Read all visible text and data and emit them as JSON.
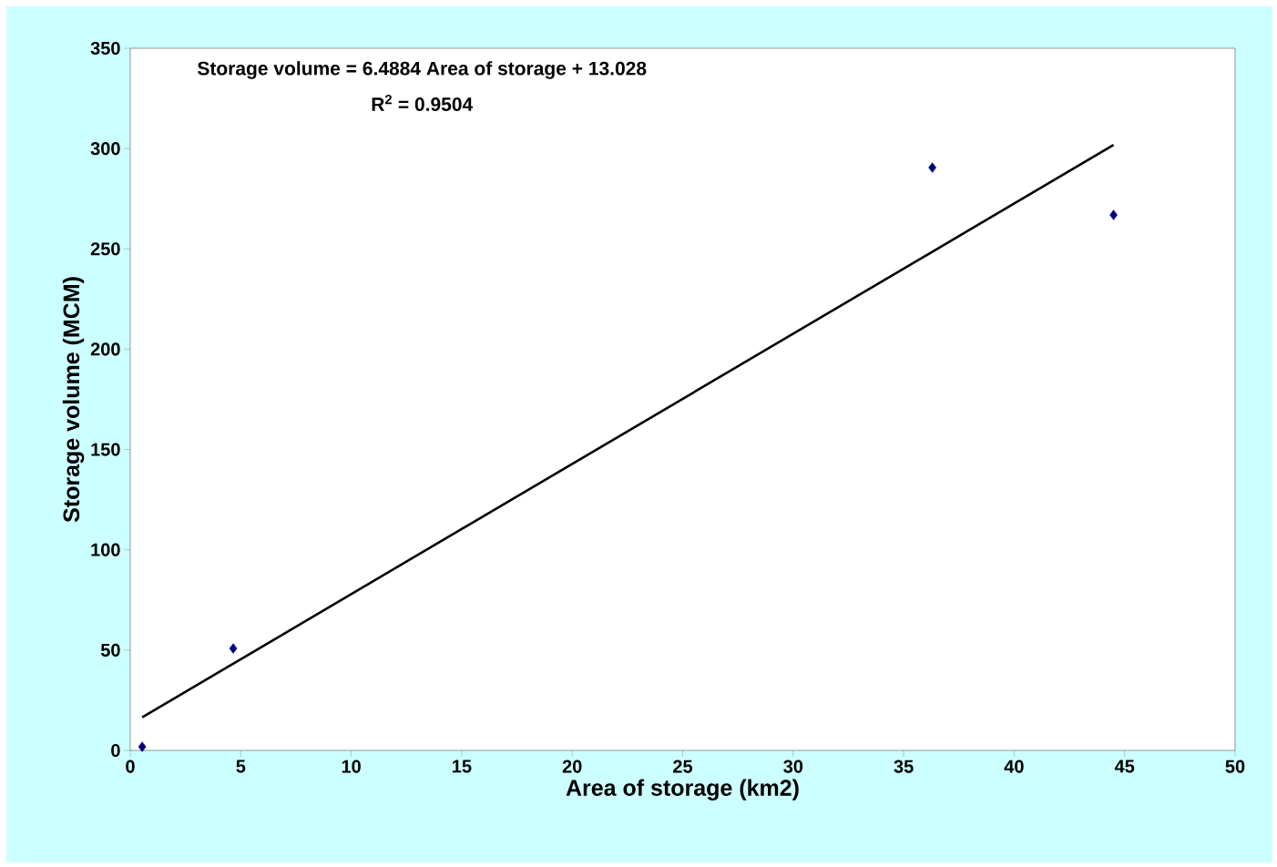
{
  "chart_data": {
    "type": "scatter",
    "xlabel": "Area of storage (km2)",
    "ylabel": "Storage volume (MCM)",
    "annotations": [
      "Storage volume = 6.4884 Area of storage + 13.028",
      "R$^{2}$ = 0.9504"
    ],
    "series": [
      {
        "color": "#000080",
        "marker": "diamond",
        "x": [
          0.54,
          4.66,
          36.3,
          44.5
        ],
        "values": [
          1.8,
          50.8,
          290.5,
          266.9
        ]
      },
      {
        "type": "line",
        "color": "#000000",
        "marker": "none",
        "x": [
          0.54,
          44.5
        ],
        "values": [
          16.5,
          301.8
        ]
      }
    ],
    "xlim": [
      0,
      50
    ],
    "ylim": [
      0,
      350
    ],
    "xticks": [
      0,
      5,
      10,
      15,
      20,
      25,
      30,
      35,
      40,
      45,
      50
    ],
    "yticks": [
      0,
      50,
      100,
      150,
      200,
      250,
      300,
      350
    ]
  }
}
